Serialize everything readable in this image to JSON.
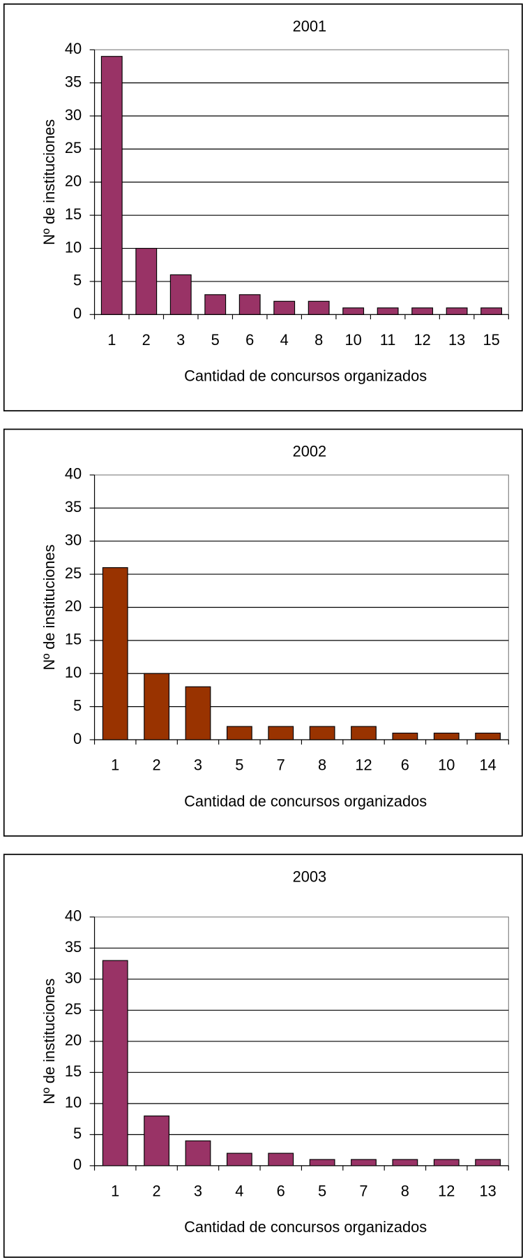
{
  "chart_data": [
    {
      "type": "bar",
      "title": "2001",
      "xlabel": "Cantidad de concursos organizados",
      "ylabel": "Nº de instituciones",
      "categories": [
        "1",
        "2",
        "3",
        "5",
        "6",
        "4",
        "8",
        "10",
        "11",
        "12",
        "13",
        "15"
      ],
      "values": [
        39,
        10,
        6,
        3,
        3,
        2,
        2,
        1,
        1,
        1,
        1,
        1
      ],
      "color": "#993366",
      "ylim": [
        0,
        40
      ],
      "yticks": [
        0,
        5,
        10,
        15,
        20,
        25,
        30,
        35,
        40
      ],
      "grid": true
    },
    {
      "type": "bar",
      "title": "2002",
      "xlabel": "Cantidad de concursos organizados",
      "ylabel": "Nº de instituciones",
      "categories": [
        "1",
        "2",
        "3",
        "5",
        "7",
        "8",
        "12",
        "6",
        "10",
        "14"
      ],
      "values": [
        26,
        10,
        8,
        2,
        2,
        2,
        2,
        1,
        1,
        1
      ],
      "color": "#993300",
      "ylim": [
        0,
        40
      ],
      "yticks": [
        0,
        5,
        10,
        15,
        20,
        25,
        30,
        35,
        40
      ],
      "grid": true
    },
    {
      "type": "bar",
      "title": "2003",
      "xlabel": "Cantidad de concursos organizados",
      "ylabel": "Nº de instituciones",
      "categories": [
        "1",
        "2",
        "3",
        "4",
        "6",
        "5",
        "7",
        "8",
        "12",
        "13"
      ],
      "values": [
        33,
        8,
        4,
        2,
        2,
        1,
        1,
        1,
        1,
        1
      ],
      "color": "#993366",
      "ylim": [
        0,
        40
      ],
      "yticks": [
        0,
        5,
        10,
        15,
        20,
        25,
        30,
        35,
        40
      ],
      "grid": true
    }
  ]
}
